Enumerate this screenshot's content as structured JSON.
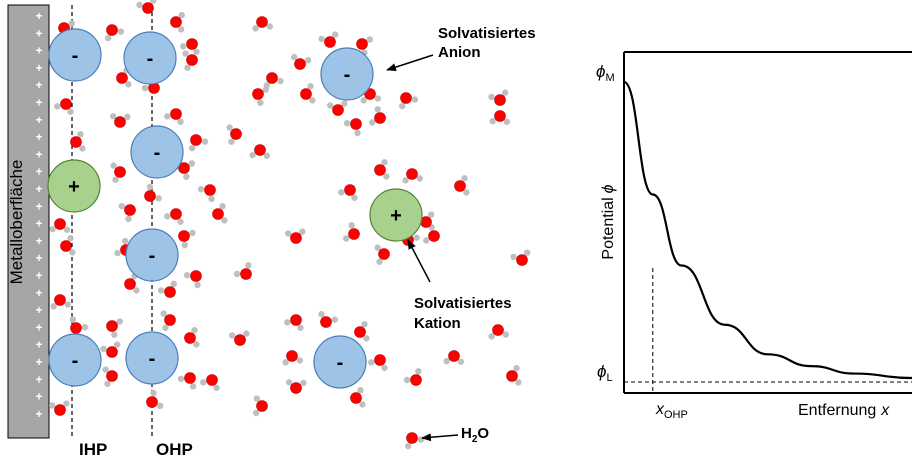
{
  "colors": {
    "electrode": "#a6a6a6",
    "anion_fill": "#9dc3e6",
    "anion_stroke": "#4a7ebb",
    "cation_fill": "#a9d18e",
    "cation_stroke": "#548235",
    "oxygen": "#ff0000",
    "hydrogen": "#bfbfbf",
    "line": "#000000"
  },
  "electrode": {
    "label": "Metalloberfläche",
    "charge_symbol": "+"
  },
  "ions": {
    "anion_symbol": "-",
    "cation_symbol": "+"
  },
  "planes": {
    "ihp": "IHP",
    "ohp": "OHP"
  },
  "annotations": {
    "solvated_anion": [
      "Solvatisiertes",
      "Anion"
    ],
    "solvated_cation": [
      "Solvatisiertes",
      "Kation"
    ],
    "water_main": "H",
    "water_sub": "2",
    "water_tail": "O"
  },
  "chart_data": {
    "type": "line",
    "series": [
      {
        "values": [
          [
            0,
            1.0
          ],
          [
            0.1,
            0.62
          ],
          [
            0.2,
            0.38
          ],
          [
            0.35,
            0.18
          ],
          [
            0.5,
            0.08
          ],
          [
            0.65,
            0.04
          ],
          [
            0.8,
            0.015
          ],
          [
            1.0,
            0.0
          ]
        ]
      }
    ],
    "xlim": [
      0,
      1
    ],
    "ylim": [
      0,
      1
    ],
    "y_axis_label": "Potential",
    "y_axis_symbol": "ϕ",
    "x_axis_label": "Entfernung",
    "x_axis_symbol": "x",
    "tick_top": {
      "main": "ϕ",
      "sub": "M"
    },
    "tick_bottom": {
      "main": "ϕ",
      "sub": "L"
    },
    "x_marker": {
      "main": "x",
      "sub": "OHP",
      "x": 0.1
    }
  }
}
